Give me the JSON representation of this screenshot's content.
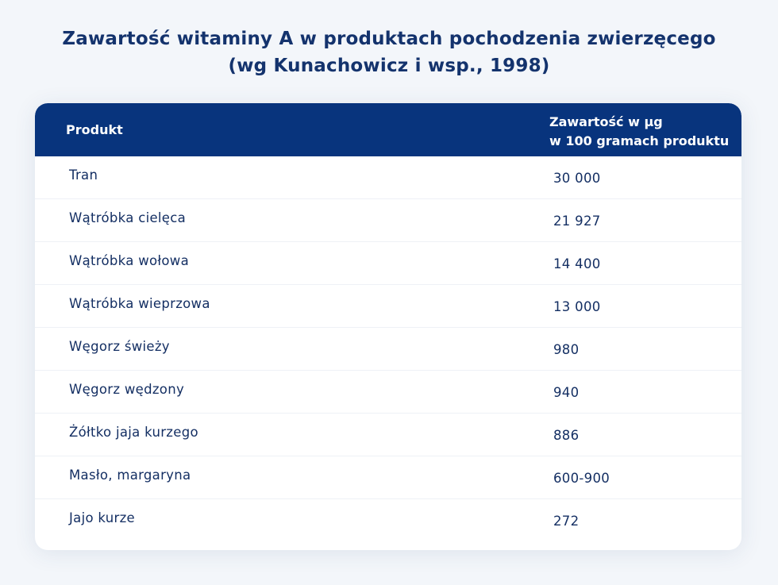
{
  "title": {
    "line1": "Zawartość witaminy A w produktach pochodzenia zwierzęcego",
    "line2": "(wg Kunachowicz i wsp., 1998)"
  },
  "table": {
    "headers": {
      "product": "Produkt",
      "value_line1": "Zawartość w µg",
      "value_line2": "w 100 gramach produktu"
    },
    "rows": [
      {
        "product": "Tran",
        "value": "30 000"
      },
      {
        "product": "Wątróbka cielęca",
        "value": "21 927"
      },
      {
        "product": "Wątróbka wołowa",
        "value": "14 400"
      },
      {
        "product": "Wątróbka wieprzowa",
        "value": "13 000"
      },
      {
        "product": "Węgorz świeży",
        "value": "980"
      },
      {
        "product": "Węgorz wędzony",
        "value": "940"
      },
      {
        "product": "Żółtko jaja kurzego",
        "value": "886"
      },
      {
        "product": "Masło, margaryna",
        "value": "600-900"
      },
      {
        "product": "Jajo kurze",
        "value": "272"
      }
    ]
  },
  "colors": {
    "header_background": "#08347d",
    "text": "#142f63",
    "page_background": "#f3f6fa"
  }
}
